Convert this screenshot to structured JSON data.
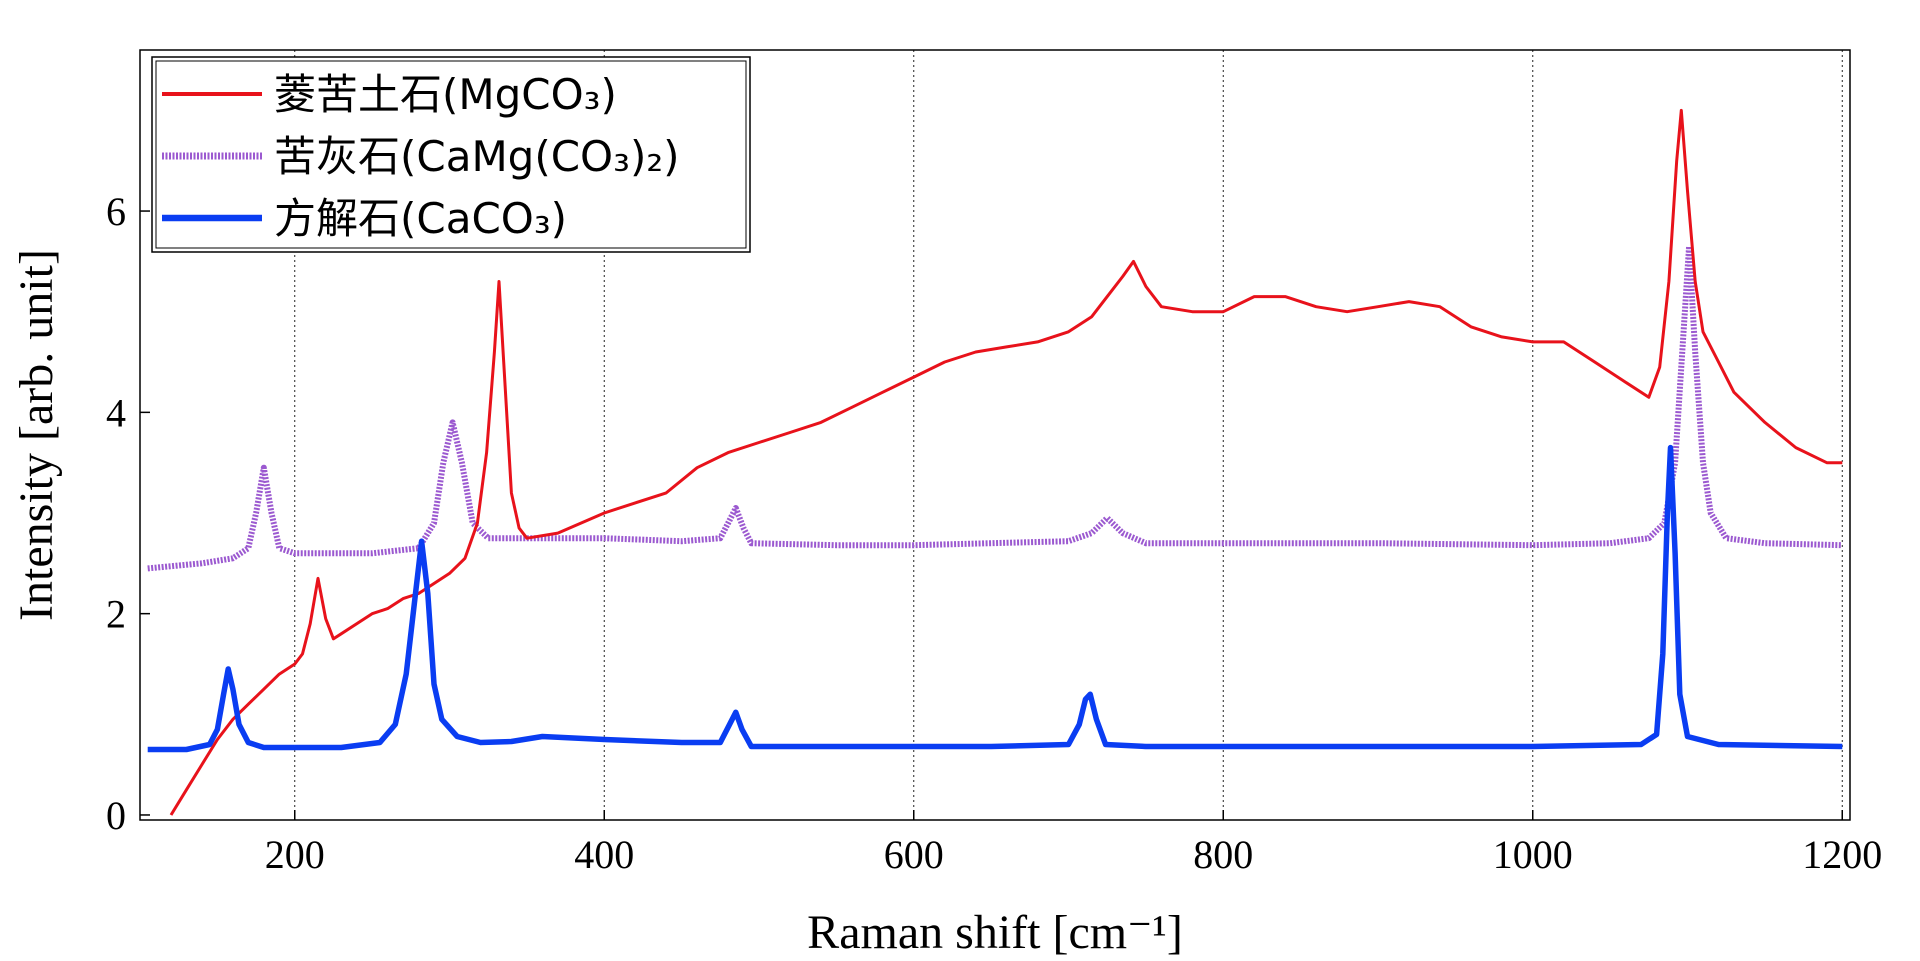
{
  "chart_data": {
    "type": "line",
    "xlabel": "Raman shift [cm⁻¹]",
    "ylabel": "Intensity [arb. unit]",
    "xlim": [
      100,
      1205
    ],
    "ylim": [
      -0.05,
      7.6
    ],
    "xticks": [
      200,
      400,
      600,
      800,
      1000,
      1200
    ],
    "yticks": [
      0,
      2,
      4,
      6
    ],
    "grid": "vertical dotted lines at x ticks",
    "legend_position": "top-left",
    "series": [
      {
        "name": "菱苦土石(MgCO₃)",
        "color": "#e8121b",
        "style": "thin solid",
        "points": [
          [
            120,
            0.0
          ],
          [
            130,
            0.25
          ],
          [
            140,
            0.5
          ],
          [
            150,
            0.75
          ],
          [
            160,
            0.95
          ],
          [
            170,
            1.1
          ],
          [
            180,
            1.25
          ],
          [
            190,
            1.4
          ],
          [
            200,
            1.5
          ],
          [
            205,
            1.6
          ],
          [
            210,
            1.9
          ],
          [
            215,
            2.35
          ],
          [
            220,
            1.95
          ],
          [
            225,
            1.75
          ],
          [
            230,
            1.8
          ],
          [
            240,
            1.9
          ],
          [
            250,
            2.0
          ],
          [
            260,
            2.05
          ],
          [
            270,
            2.15
          ],
          [
            280,
            2.2
          ],
          [
            290,
            2.3
          ],
          [
            300,
            2.4
          ],
          [
            310,
            2.55
          ],
          [
            318,
            2.9
          ],
          [
            324,
            3.6
          ],
          [
            329,
            4.6
          ],
          [
            332,
            5.3
          ],
          [
            335,
            4.5
          ],
          [
            340,
            3.2
          ],
          [
            345,
            2.85
          ],
          [
            350,
            2.75
          ],
          [
            370,
            2.8
          ],
          [
            400,
            3.0
          ],
          [
            420,
            3.1
          ],
          [
            440,
            3.2
          ],
          [
            460,
            3.45
          ],
          [
            480,
            3.6
          ],
          [
            500,
            3.7
          ],
          [
            520,
            3.8
          ],
          [
            540,
            3.9
          ],
          [
            560,
            4.05
          ],
          [
            580,
            4.2
          ],
          [
            600,
            4.35
          ],
          [
            620,
            4.5
          ],
          [
            640,
            4.6
          ],
          [
            660,
            4.65
          ],
          [
            680,
            4.7
          ],
          [
            700,
            4.8
          ],
          [
            715,
            4.95
          ],
          [
            725,
            5.15
          ],
          [
            735,
            5.35
          ],
          [
            742,
            5.5
          ],
          [
            750,
            5.25
          ],
          [
            760,
            5.05
          ],
          [
            780,
            5.0
          ],
          [
            800,
            5.0
          ],
          [
            820,
            5.15
          ],
          [
            840,
            5.15
          ],
          [
            860,
            5.05
          ],
          [
            880,
            5.0
          ],
          [
            900,
            5.05
          ],
          [
            920,
            5.1
          ],
          [
            940,
            5.05
          ],
          [
            960,
            4.85
          ],
          [
            980,
            4.75
          ],
          [
            1000,
            4.7
          ],
          [
            1020,
            4.7
          ],
          [
            1040,
            4.5
          ],
          [
            1060,
            4.3
          ],
          [
            1075,
            4.15
          ],
          [
            1082,
            4.45
          ],
          [
            1088,
            5.3
          ],
          [
            1093,
            6.5
          ],
          [
            1096,
            7.0
          ],
          [
            1100,
            6.2
          ],
          [
            1105,
            5.3
          ],
          [
            1110,
            4.8
          ],
          [
            1120,
            4.5
          ],
          [
            1130,
            4.2
          ],
          [
            1150,
            3.9
          ],
          [
            1170,
            3.65
          ],
          [
            1190,
            3.5
          ],
          [
            1200,
            3.5
          ]
        ]
      },
      {
        "name": "苦灰石(CaMg(CO₃)₂)",
        "color": "#9b59d0",
        "style": "thick dashed",
        "points": [
          [
            105,
            2.45
          ],
          [
            140,
            2.5
          ],
          [
            160,
            2.55
          ],
          [
            170,
            2.65
          ],
          [
            175,
            3.0
          ],
          [
            180,
            3.45
          ],
          [
            185,
            3.0
          ],
          [
            190,
            2.65
          ],
          [
            200,
            2.6
          ],
          [
            250,
            2.6
          ],
          [
            280,
            2.65
          ],
          [
            290,
            2.9
          ],
          [
            296,
            3.5
          ],
          [
            302,
            3.9
          ],
          [
            308,
            3.5
          ],
          [
            315,
            2.9
          ],
          [
            325,
            2.75
          ],
          [
            350,
            2.75
          ],
          [
            400,
            2.75
          ],
          [
            450,
            2.72
          ],
          [
            475,
            2.75
          ],
          [
            480,
            2.9
          ],
          [
            485,
            3.05
          ],
          [
            490,
            2.85
          ],
          [
            495,
            2.7
          ],
          [
            550,
            2.68
          ],
          [
            600,
            2.68
          ],
          [
            650,
            2.7
          ],
          [
            700,
            2.72
          ],
          [
            715,
            2.8
          ],
          [
            725,
            2.95
          ],
          [
            735,
            2.8
          ],
          [
            750,
            2.7
          ],
          [
            800,
            2.7
          ],
          [
            900,
            2.7
          ],
          [
            1000,
            2.68
          ],
          [
            1050,
            2.7
          ],
          [
            1075,
            2.75
          ],
          [
            1085,
            2.9
          ],
          [
            1092,
            3.5
          ],
          [
            1097,
            4.7
          ],
          [
            1101,
            5.65
          ],
          [
            1105,
            4.6
          ],
          [
            1110,
            3.5
          ],
          [
            1115,
            3.0
          ],
          [
            1125,
            2.75
          ],
          [
            1150,
            2.7
          ],
          [
            1200,
            2.68
          ]
        ]
      },
      {
        "name": "方解石(CaCO₃)",
        "color": "#0a3df2",
        "style": "thick solid",
        "points": [
          [
            105,
            0.65
          ],
          [
            130,
            0.65
          ],
          [
            145,
            0.7
          ],
          [
            150,
            0.85
          ],
          [
            154,
            1.2
          ],
          [
            157,
            1.45
          ],
          [
            160,
            1.25
          ],
          [
            164,
            0.9
          ],
          [
            170,
            0.72
          ],
          [
            180,
            0.67
          ],
          [
            230,
            0.67
          ],
          [
            255,
            0.72
          ],
          [
            265,
            0.9
          ],
          [
            272,
            1.4
          ],
          [
            278,
            2.2
          ],
          [
            282,
            2.72
          ],
          [
            286,
            2.2
          ],
          [
            290,
            1.3
          ],
          [
            295,
            0.95
          ],
          [
            305,
            0.78
          ],
          [
            320,
            0.72
          ],
          [
            340,
            0.73
          ],
          [
            360,
            0.78
          ],
          [
            400,
            0.75
          ],
          [
            450,
            0.72
          ],
          [
            475,
            0.72
          ],
          [
            481,
            0.9
          ],
          [
            485,
            1.02
          ],
          [
            489,
            0.85
          ],
          [
            495,
            0.68
          ],
          [
            550,
            0.68
          ],
          [
            650,
            0.68
          ],
          [
            700,
            0.7
          ],
          [
            707,
            0.9
          ],
          [
            711,
            1.15
          ],
          [
            714,
            1.2
          ],
          [
            718,
            0.95
          ],
          [
            724,
            0.7
          ],
          [
            750,
            0.68
          ],
          [
            900,
            0.68
          ],
          [
            1000,
            0.68
          ],
          [
            1070,
            0.7
          ],
          [
            1080,
            0.8
          ],
          [
            1084,
            1.6
          ],
          [
            1087,
            3.0
          ],
          [
            1089,
            3.65
          ],
          [
            1092,
            2.6
          ],
          [
            1095,
            1.2
          ],
          [
            1100,
            0.78
          ],
          [
            1120,
            0.7
          ],
          [
            1200,
            0.68
          ]
        ]
      }
    ]
  }
}
